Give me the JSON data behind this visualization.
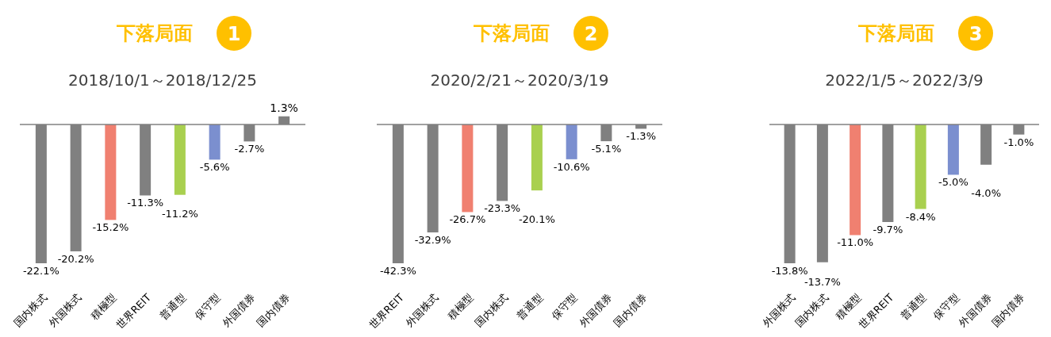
{
  "chart_data": [
    {
      "type": "bar",
      "title": "下落局面",
      "annotations": [
        "1"
      ],
      "subtitle": "2018/10/1～2018/12/25",
      "categories": [
        "国内株式",
        "外国株式",
        "積極型",
        "世界REIT",
        "普通型",
        "保守型",
        "外国債券",
        "国内債券"
      ],
      "values": [
        -22.1,
        -20.2,
        -15.2,
        -11.3,
        -11.2,
        -5.6,
        -2.7,
        1.3
      ],
      "colors": [
        "#808080",
        "#808080",
        "#f08070",
        "#808080",
        "#a9d04f",
        "#7b8fcf",
        "#808080",
        "#808080"
      ],
      "value_labels": [
        "-22.1%",
        "-20.2%",
        "-15.2%",
        "-11.3%",
        "-11.2%",
        "-5.6%",
        "-2.7%",
        "1.3%"
      ]
    },
    {
      "type": "bar",
      "title": "下落局面",
      "annotations": [
        "2"
      ],
      "subtitle": "2020/2/21～2020/3/19",
      "categories": [
        "世界REIT",
        "外国株式",
        "積極型",
        "国内株式",
        "普通型",
        "保守型",
        "外国債券",
        "国内債券"
      ],
      "values": [
        -42.3,
        -32.9,
        -26.7,
        -23.3,
        -20.1,
        -10.6,
        -5.1,
        -1.3
      ],
      "colors": [
        "#808080",
        "#808080",
        "#f08070",
        "#808080",
        "#a9d04f",
        "#7b8fcf",
        "#808080",
        "#808080"
      ],
      "value_labels": [
        "-42.3%",
        "-32.9%",
        "-26.7%",
        "-23.3%",
        "-20.1%",
        "-10.6%",
        "-5.1%",
        "-1.3%"
      ]
    },
    {
      "type": "bar",
      "title": "下落局面",
      "annotations": [
        "3"
      ],
      "subtitle": "2022/1/5～2022/3/9",
      "categories": [
        "外国株式",
        "国内株式",
        "積極型",
        "世界REIT",
        "普通型",
        "保守型",
        "外国債券",
        "国内債券"
      ],
      "values": [
        -13.8,
        -13.7,
        -11.0,
        -9.7,
        -8.4,
        -5.0,
        -4.0,
        -1.0
      ],
      "colors": [
        "#808080",
        "#808080",
        "#f08070",
        "#808080",
        "#a9d04f",
        "#7b8fcf",
        "#808080",
        "#808080"
      ],
      "value_labels": [
        "-13.8%",
        "-13.7%",
        "-11.0%",
        "-9.7%",
        "-8.4%",
        "-5.0%",
        "-4.0%",
        "-1.0%"
      ]
    }
  ]
}
